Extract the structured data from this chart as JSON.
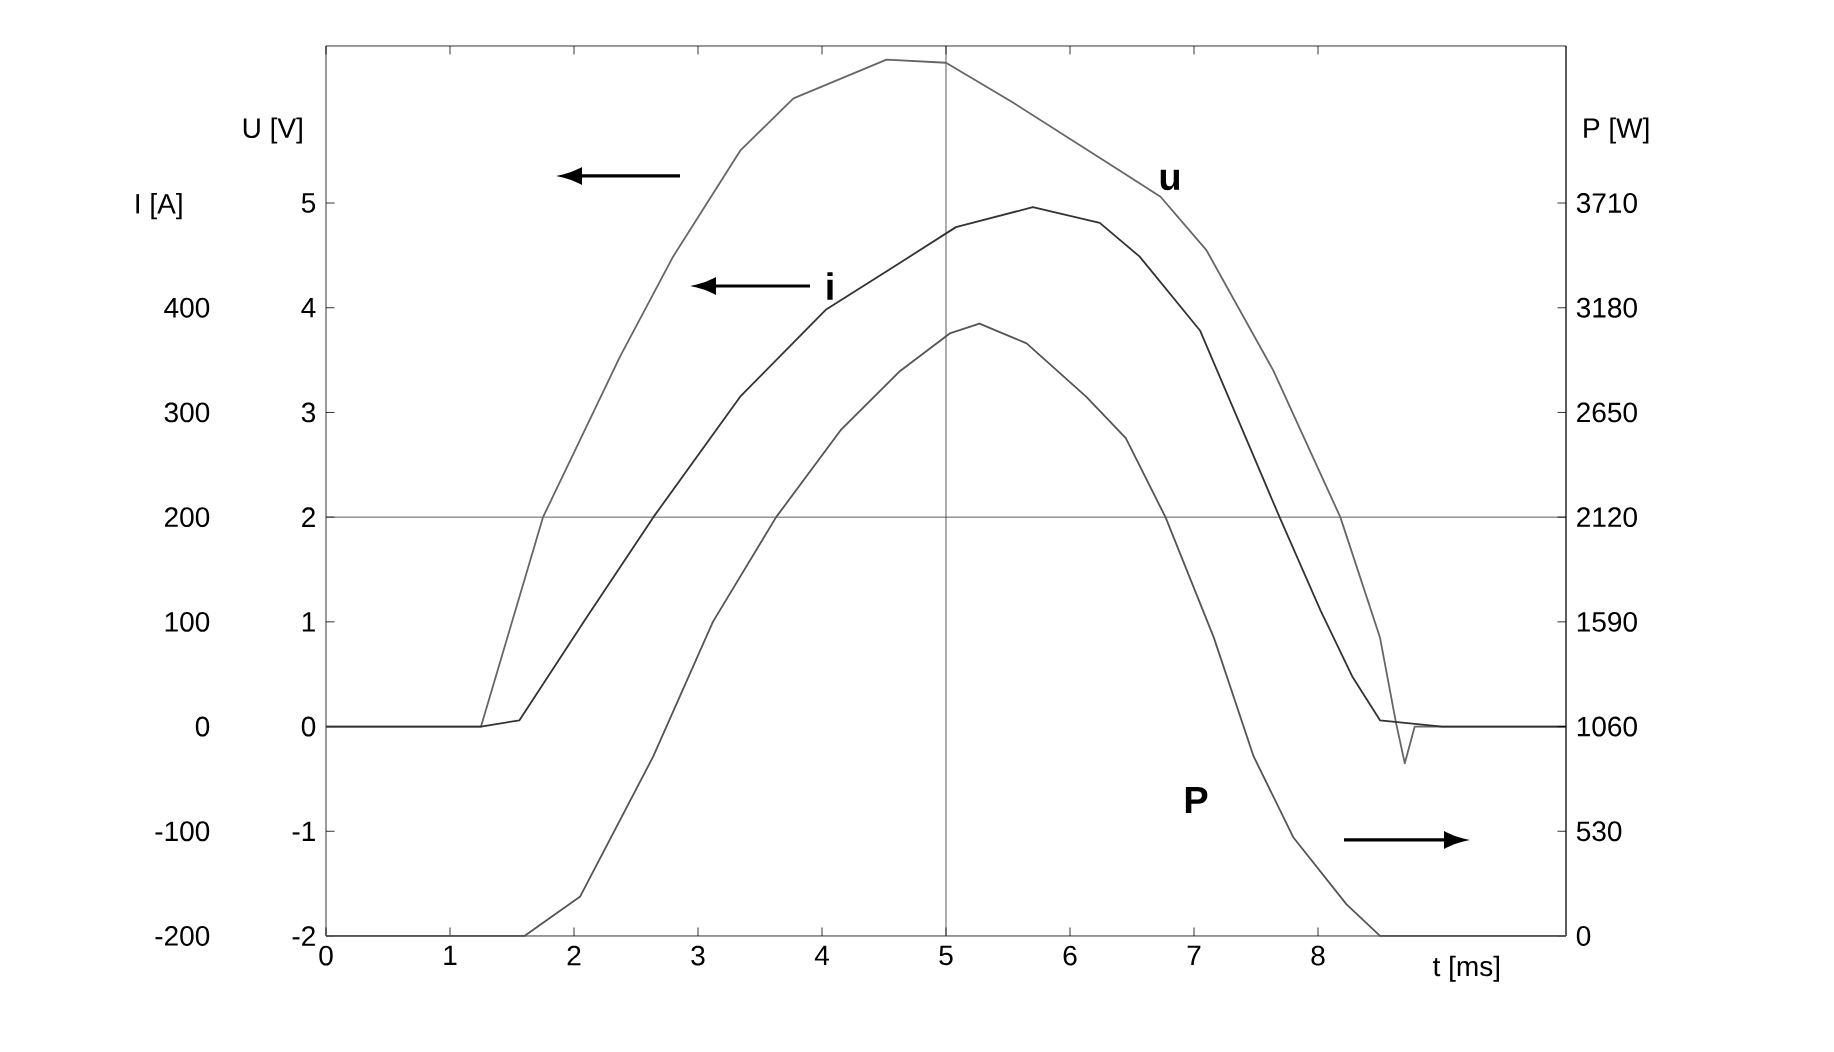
{
  "chart_data": {
    "type": "line",
    "xlabel": "t [ms]",
    "ylabel": "U [V]",
    "y2label": "P [W]",
    "y3label": "I [A]",
    "xlim": [
      0,
      10
    ],
    "xticks": [
      0,
      1,
      2,
      3,
      4,
      5,
      6,
      7,
      8
    ],
    "ylim": [
      -2,
      6.5
    ],
    "yticks": [
      -2,
      -1,
      0,
      1,
      2,
      3,
      4,
      5
    ],
    "y2lim": [
      0,
      4505
    ],
    "y2ticks": [
      0,
      530,
      1060,
      1590,
      2120,
      2650,
      3180,
      3710
    ],
    "y3lim": [
      -200,
      650
    ],
    "y3ticks": [
      -200,
      -100,
      0,
      100,
      200,
      300,
      400
    ],
    "series": [
      {
        "name": "u",
        "color": "#666666",
        "x": [
          0,
          0.5,
          1,
          1.25,
          1.75,
          2.37,
          2.8,
          3.34,
          3.77,
          4.52,
          5,
          5.54,
          6.4,
          6.73,
          7.1,
          7.64,
          8.18,
          8.5,
          8.63,
          8.7,
          8.78,
          9.3,
          10
        ],
        "values": [
          0,
          0,
          0,
          0,
          2,
          3.53,
          4.49,
          5.5,
          6.0,
          6.37,
          6.34,
          5.96,
          5.31,
          5.06,
          4.55,
          3.4,
          2.0,
          0.85,
          0.03,
          -0.35,
          0,
          0,
          0
        ]
      },
      {
        "name": "i",
        "color": "#333333",
        "axis": "y3",
        "x": [
          0,
          0.5,
          1,
          1.25,
          1.56,
          2.1,
          2.64,
          3.34,
          4.03,
          4.63,
          5.08,
          5.7,
          6.24,
          6.56,
          7.05,
          7.37,
          7.69,
          8.02,
          8.28,
          8.5,
          9,
          10
        ],
        "values": [
          0,
          0,
          0,
          0,
          6,
          104,
          200,
          315,
          398,
          443,
          477,
          496,
          481,
          449,
          378,
          289,
          200,
          111,
          47,
          6,
          0,
          0
        ]
      },
      {
        "name": "P",
        "color": "#555555",
        "axis": "y2",
        "x": [
          0,
          0.5,
          1,
          1.5,
          1.6,
          2.05,
          2.64,
          3.12,
          3.63,
          4.15,
          4.63,
          5.03,
          5.27,
          5.65,
          6.13,
          6.45,
          6.77,
          7.16,
          7.48,
          7.8,
          8.23,
          8.5,
          9,
          10
        ],
        "values": [
          0,
          0,
          0,
          0,
          0,
          200,
          910,
          1590,
          2120,
          2560,
          2860,
          3050,
          3100,
          3000,
          2730,
          2520,
          2120,
          1510,
          910,
          500,
          160,
          0,
          0,
          0
        ]
      }
    ],
    "ref_lines": [
      {
        "axis": "x",
        "value": 5,
        "color": "#333333"
      },
      {
        "axis": "y",
        "value": 2,
        "color": "#333333"
      }
    ]
  }
}
